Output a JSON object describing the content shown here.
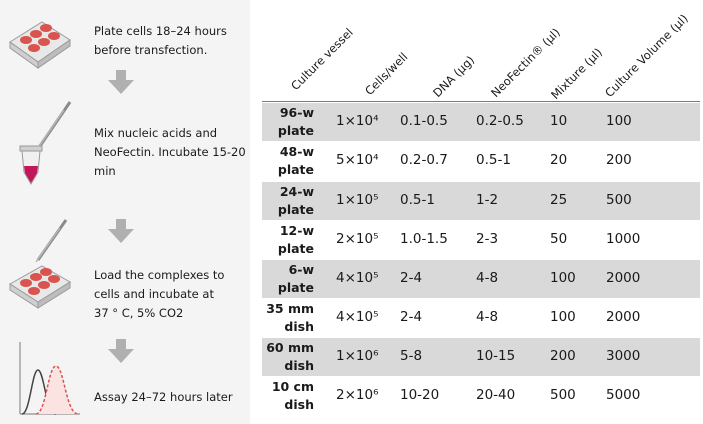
{
  "steps": [
    {
      "text": "Plate cells 18–24 hours\nbefore transfection."
    },
    {
      "text": "Mix nucleic acids and\nNeoFectin. Incubate 15-20\nmin"
    },
    {
      "text": "Load the complexes to\ncells and incubate at\n37 ° C, 5% CO2"
    },
    {
      "text": "Assay 24–72 hours later"
    }
  ],
  "table": {
    "headers": [
      "Culture vessel",
      "Cells/well",
      "DNA (µg)",
      "NeoFectin® (µl)",
      "Mixture (µl)",
      "Culture Volume (µl)"
    ],
    "rows": [
      {
        "vessel": "96-w\nplate",
        "cells": "1×10⁴",
        "dna": "0.1-0.5",
        "neofectin": "0.2-0.5",
        "mixture": "10",
        "volume": "100"
      },
      {
        "vessel": "48-w\nplate",
        "cells": "5×10⁴",
        "dna": "0.2-0.7",
        "neofectin": "0.5-1",
        "mixture": "20",
        "volume": "200"
      },
      {
        "vessel": "24-w\nplate",
        "cells": "1×10⁵",
        "dna": "0.5-1",
        "neofectin": "1-2",
        "mixture": "25",
        "volume": "500"
      },
      {
        "vessel": "12-w\nplate",
        "cells": "2×10⁵",
        "dna": "1.0-1.5",
        "neofectin": "2-3",
        "mixture": "50",
        "volume": "1000"
      },
      {
        "vessel": "6-w\nplate",
        "cells": "4×10⁵",
        "dna": "2-4",
        "neofectin": "4-8",
        "mixture": "100",
        "volume": "2000"
      },
      {
        "vessel": "35 mm\ndish",
        "cells": "4×10⁵",
        "dna": "2-4",
        "neofectin": "4-8",
        "mixture": "100",
        "volume": "2000"
      },
      {
        "vessel": "60 mm\ndish",
        "cells": "1×10⁶",
        "dna": "5-8",
        "neofectin": "10-15",
        "mixture": "200",
        "volume": "3000"
      },
      {
        "vessel": "10 cm\ndish",
        "cells": "2×10⁶",
        "dna": "10-20",
        "neofectin": "20-40",
        "mixture": "500",
        "volume": "5000"
      }
    ]
  },
  "colors": {
    "shade": "#d9d9d9",
    "arrow": "#b0b0b0",
    "plate": "#d9534f",
    "tube": "#c2185b"
  },
  "icons": [
    "well-plate-icon",
    "arrow-down-icon",
    "pipette-icon",
    "tube-icon",
    "histogram-icon"
  ]
}
